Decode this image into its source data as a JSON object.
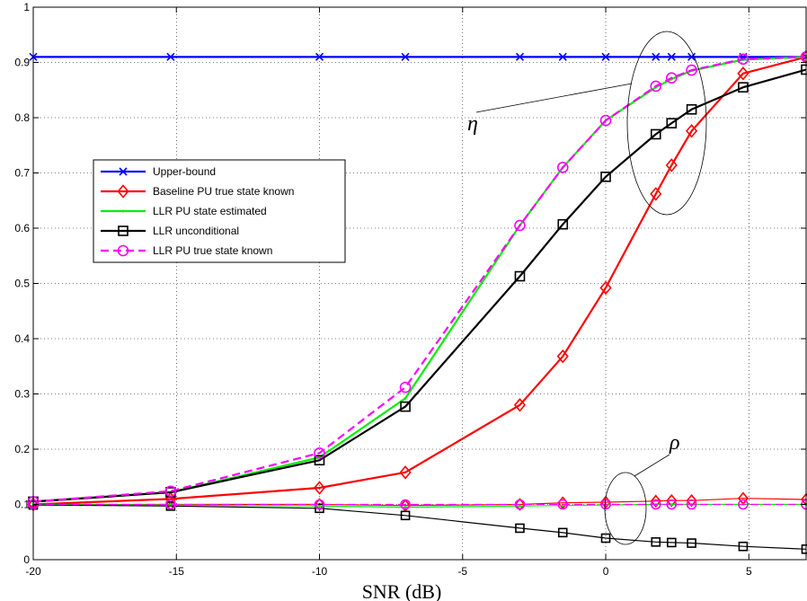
{
  "chart_data": {
    "type": "line",
    "xlabel": "SNR (dB)",
    "ylabel": "",
    "xlim": [
      -20,
      7
    ],
    "ylim": [
      0,
      1
    ],
    "xticks": [
      "-20",
      "-15",
      "-10",
      "-5",
      "0",
      "5"
    ],
    "yticks": [
      "0",
      "0.1",
      "0.2",
      "0.3",
      "0.4",
      "0.5",
      "0.6",
      "0.7",
      "0.8",
      "0.9",
      "1"
    ],
    "grid": true,
    "legend_position": "center-left",
    "annotations": [
      {
        "text": "η"
      },
      {
        "text": "ρ"
      }
    ],
    "series": [
      {
        "name": "Upper-bound",
        "color": "#0000ff",
        "marker": "x",
        "dash": "solid",
        "x": [
          -20,
          -15.2,
          -10,
          -7,
          -3,
          -1.5,
          0,
          1.75,
          2.3,
          3,
          4.8,
          7
        ],
        "y": [
          0.91,
          0.91,
          0.91,
          0.91,
          0.91,
          0.91,
          0.91,
          0.91,
          0.91,
          0.91,
          0.91,
          0.91
        ]
      },
      {
        "name": "Baseline PU true state known",
        "color": "#ff0000",
        "marker": "diamond",
        "dash": "solid",
        "x": [
          -20,
          -15.2,
          -10,
          -7,
          -3,
          -1.5,
          0,
          1.75,
          2.3,
          3,
          4.8,
          7
        ],
        "y": [
          0.1,
          0.11,
          0.13,
          0.158,
          0.28,
          0.368,
          0.492,
          0.662,
          0.714,
          0.776,
          0.88,
          0.91
        ]
      },
      {
        "name": "LLR PU state estimated",
        "color": "#00ee00",
        "marker": "dot",
        "dash": "solid",
        "x": [
          -20,
          -15.2,
          -10,
          -7,
          -3,
          -1.5,
          0,
          1.75,
          2.3,
          3,
          4.8,
          7
        ],
        "y": [
          0.105,
          0.122,
          0.185,
          0.292,
          0.605,
          0.71,
          0.795,
          0.855,
          0.87,
          0.885,
          0.905,
          0.91
        ]
      },
      {
        "name": "LLR unconditional",
        "color": "#000000",
        "marker": "square",
        "dash": "solid",
        "x": [
          -20,
          -15.2,
          -10,
          -7,
          -3,
          -1.5,
          0,
          1.75,
          2.3,
          3,
          4.8,
          7
        ],
        "y": [
          0.105,
          0.122,
          0.18,
          0.277,
          0.513,
          0.607,
          0.693,
          0.77,
          0.79,
          0.815,
          0.855,
          0.887
        ]
      },
      {
        "name": "LLR PU true state known",
        "color": "#ff00ff",
        "marker": "circle",
        "dash": "dashed",
        "x": [
          -20,
          -15.2,
          -10,
          -7,
          -3,
          -1.5,
          0,
          1.75,
          2.3,
          3,
          4.8,
          7
        ],
        "y": [
          0.105,
          0.124,
          0.193,
          0.312,
          0.605,
          0.71,
          0.795,
          0.857,
          0.872,
          0.886,
          0.906,
          0.91
        ]
      },
      {
        "name": "",
        "color": "#ff0000",
        "marker": "diamond",
        "dash": "solid",
        "thin": true,
        "x": [
          -20,
          -15.2,
          -10,
          -7,
          -3,
          -1.5,
          0,
          1.75,
          2.3,
          3,
          4.8,
          7
        ],
        "y": [
          0.1,
          0.1,
          0.1,
          0.098,
          0.1,
          0.103,
          0.104,
          0.106,
          0.107,
          0.107,
          0.111,
          0.109
        ]
      },
      {
        "name": "",
        "color": "#00ee00",
        "marker": "dot",
        "dash": "solid",
        "thin": true,
        "x": [
          -20,
          -15.2,
          -10,
          -7,
          -3,
          -1.5,
          0,
          1.75,
          2.3,
          3,
          4.8,
          7
        ],
        "y": [
          0.1,
          0.099,
          0.097,
          0.095,
          0.097,
          0.098,
          0.099,
          0.1,
          0.1,
          0.1,
          0.1,
          0.1
        ]
      },
      {
        "name": "",
        "color": "#000000",
        "marker": "square",
        "dash": "solid",
        "thin": true,
        "x": [
          -20,
          -15.2,
          -10,
          -7,
          -3,
          -1.5,
          0,
          1.75,
          2.3,
          3,
          4.8,
          7
        ],
        "y": [
          0.099,
          0.097,
          0.093,
          0.08,
          0.057,
          0.049,
          0.039,
          0.032,
          0.031,
          0.03,
          0.024,
          0.019
        ]
      },
      {
        "name": "",
        "color": "#ff00ff",
        "marker": "circle",
        "dash": "dashed",
        "thin": true,
        "x": [
          -20,
          -15.2,
          -10,
          -7,
          -3,
          -1.5,
          0,
          1.75,
          2.3,
          3,
          4.8,
          7
        ],
        "y": [
          0.1,
          0.1,
          0.1,
          0.1,
          0.1,
          0.1,
          0.1,
          0.1,
          0.1,
          0.1,
          0.1,
          0.1
        ]
      }
    ]
  }
}
